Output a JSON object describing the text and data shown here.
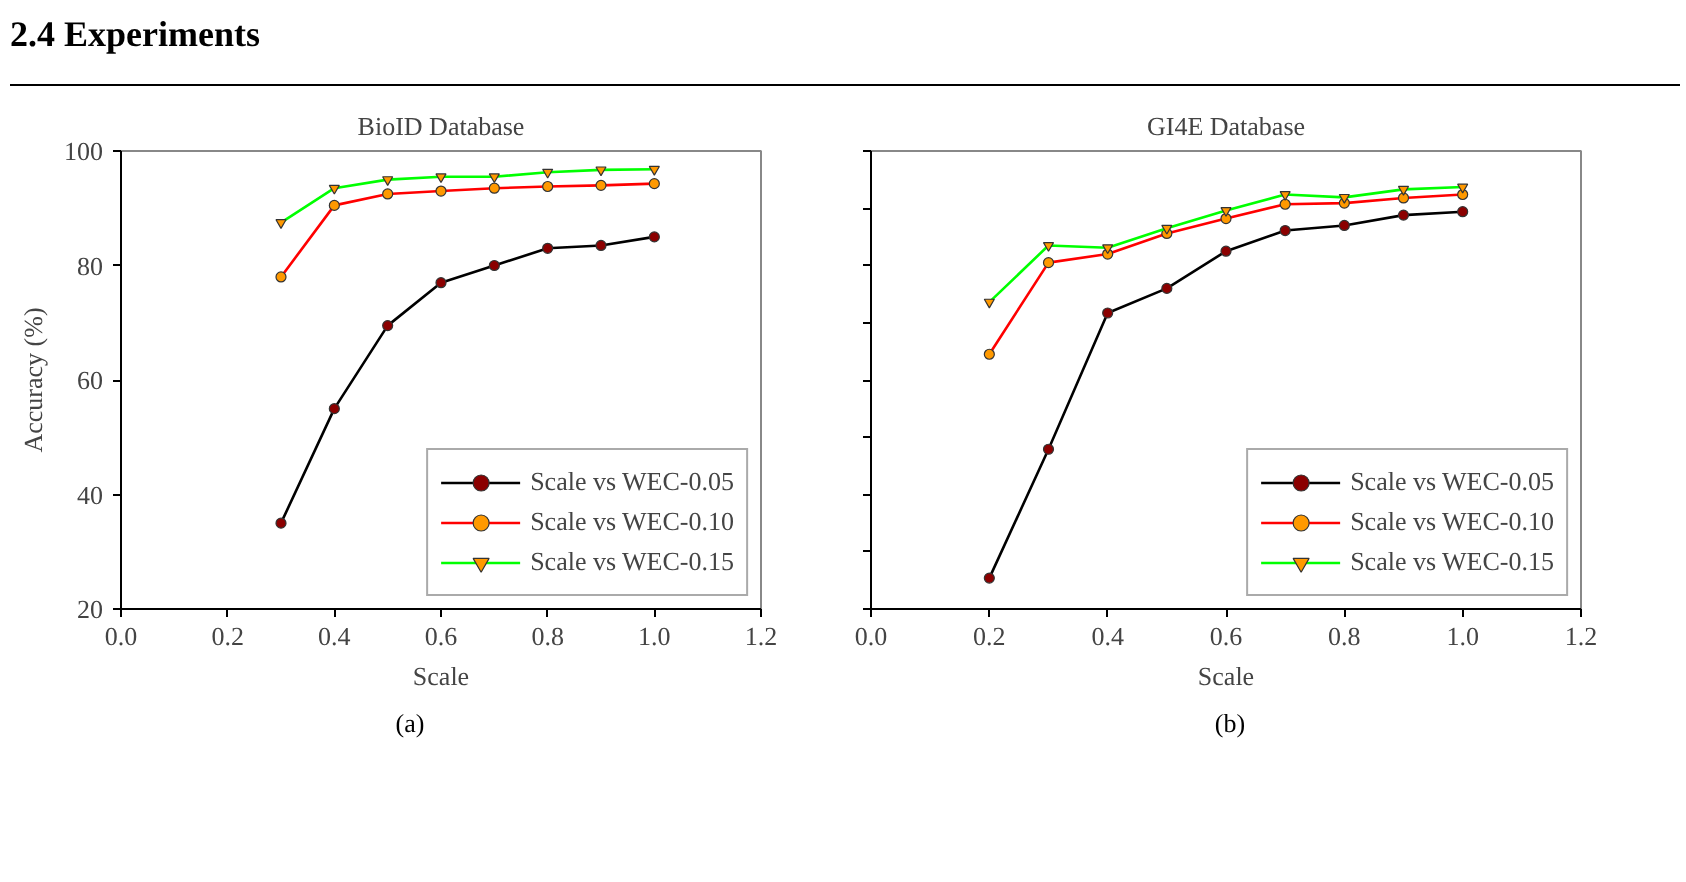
{
  "chart_data": [
    {
      "type": "line",
      "title": "BioID Database",
      "xlabel": "Scale",
      "ylabel": "Accuracy (%)",
      "annotations": [
        "2.4 Experiments",
        "(a)"
      ],
      "x": [
        0.3,
        0.4,
        0.5,
        0.6,
        0.7,
        0.8,
        0.9,
        1.0
      ],
      "series": [
        {
          "name": "Scale vs WEC-0.05",
          "color": "#000000",
          "marker": "circle",
          "values": [
            35,
            55,
            69.5,
            77,
            80,
            83,
            83.5,
            85
          ]
        },
        {
          "name": "Scale vs WEC-0.10",
          "color": "#ff0000",
          "marker": "circle",
          "values": [
            78,
            90.5,
            92.5,
            93,
            93.5,
            93.8,
            94,
            94.3
          ]
        },
        {
          "name": "Scale vs WEC-0.15",
          "color": "#00ff00",
          "marker": "triangle",
          "values": [
            87.5,
            93.5,
            95,
            95.5,
            95.5,
            96.3,
            96.7,
            96.8
          ]
        }
      ],
      "xlim": [
        0,
        1.2
      ],
      "xticks": [
        {
          "value": 0,
          "label": "0.0"
        },
        {
          "value": 0.2,
          "label": "0.2"
        },
        {
          "value": 0.4,
          "label": "0.4"
        },
        {
          "value": 0.6,
          "label": "0.6"
        },
        {
          "value": 0.8,
          "label": "0.8"
        },
        {
          "value": 1,
          "label": "1.0"
        },
        {
          "value": 1.2,
          "label": "1.2"
        }
      ],
      "ylim": [
        20,
        100
      ],
      "yticks": [
        20,
        40,
        60,
        80,
        100
      ],
      "grid": false,
      "legend": "bottom right"
    },
    {
      "type": "line",
      "title": "GI4E Database",
      "xlabel": "Scale",
      "annotations": [
        "(b)"
      ],
      "x": [
        0.2,
        0.3,
        0.4,
        0.5,
        0.6,
        0.7,
        0.8,
        0.9,
        1.0
      ],
      "series": [
        {
          "name": "Scale vs WEC-0.05",
          "color": "#000000",
          "marker": "circle",
          "values": [
            25.4,
            47.9,
            71.7,
            76,
            82.5,
            86.1,
            87,
            88.8,
            89.4
          ]
        },
        {
          "name": "Scale vs WEC-0.10",
          "color": "#ff0000",
          "marker": "circle",
          "values": [
            64.5,
            80.5,
            82,
            85.6,
            88.2,
            90.7,
            90.9,
            91.8,
            92.4
          ]
        },
        {
          "name": "Scale vs WEC-0.15",
          "color": "#00ff00",
          "marker": "triangle",
          "values": [
            73.6,
            83.5,
            83.1,
            86.5,
            89.6,
            92.4,
            91.9,
            93.3,
            93.7
          ]
        }
      ],
      "xlim": [
        0,
        1.2
      ],
      "xticks": [
        {
          "value": 0,
          "label": "0.0"
        },
        {
          "value": 0.2,
          "label": "0.2"
        },
        {
          "value": 0.4,
          "label": "0.4"
        },
        {
          "value": 0.6,
          "label": "0.6"
        },
        {
          "value": 0.8,
          "label": "0.8"
        },
        {
          "value": 1,
          "label": "1.0"
        },
        {
          "value": 1.2,
          "label": "1.2"
        }
      ],
      "ylim": [
        20,
        100
      ],
      "yticks": [
        {
          "value": 20,
          "label": null
        },
        {
          "value": 30,
          "label": null
        },
        {
          "value": 40,
          "label": null
        },
        {
          "value": 50,
          "label": null
        },
        {
          "value": 60,
          "label": null
        },
        {
          "value": 70,
          "label": null
        },
        {
          "value": 80,
          "label": null
        },
        {
          "value": 90,
          "label": null
        },
        {
          "value": 100,
          "label": null
        }
      ],
      "tick_labels": "x",
      "grid": false,
      "legend": "bottom right"
    }
  ]
}
